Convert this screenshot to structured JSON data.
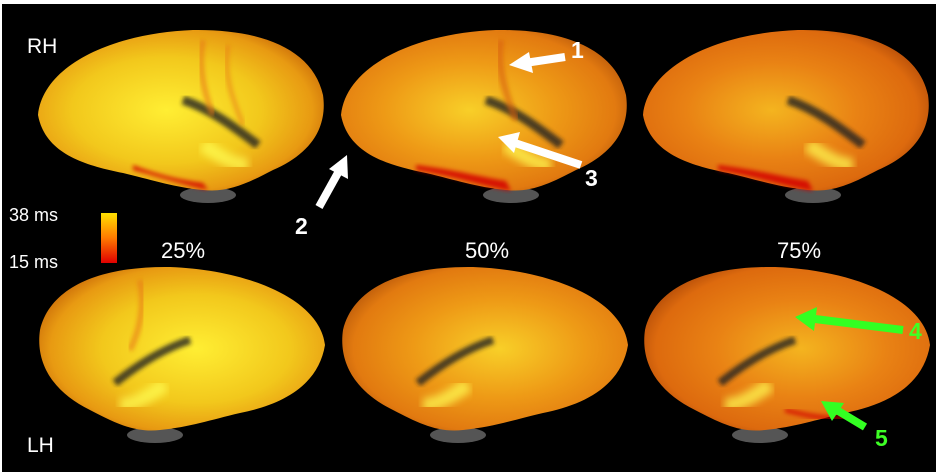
{
  "hemispheres": {
    "right": "RH",
    "left": "LH"
  },
  "colorbar": {
    "max_label": "38 ms",
    "min_label": "15 ms",
    "colors": [
      "#ffe000",
      "#ff7a00",
      "#e00000"
    ]
  },
  "percentiles": [
    "25%",
    "50%",
    "75%"
  ],
  "markers": {
    "m1": "1",
    "m2": "2",
    "m3": "3",
    "m4": "4",
    "m5": "5"
  },
  "colors": {
    "background": "#000000",
    "arrow_white": "#ffffff",
    "arrow_green": "#33ff22"
  }
}
